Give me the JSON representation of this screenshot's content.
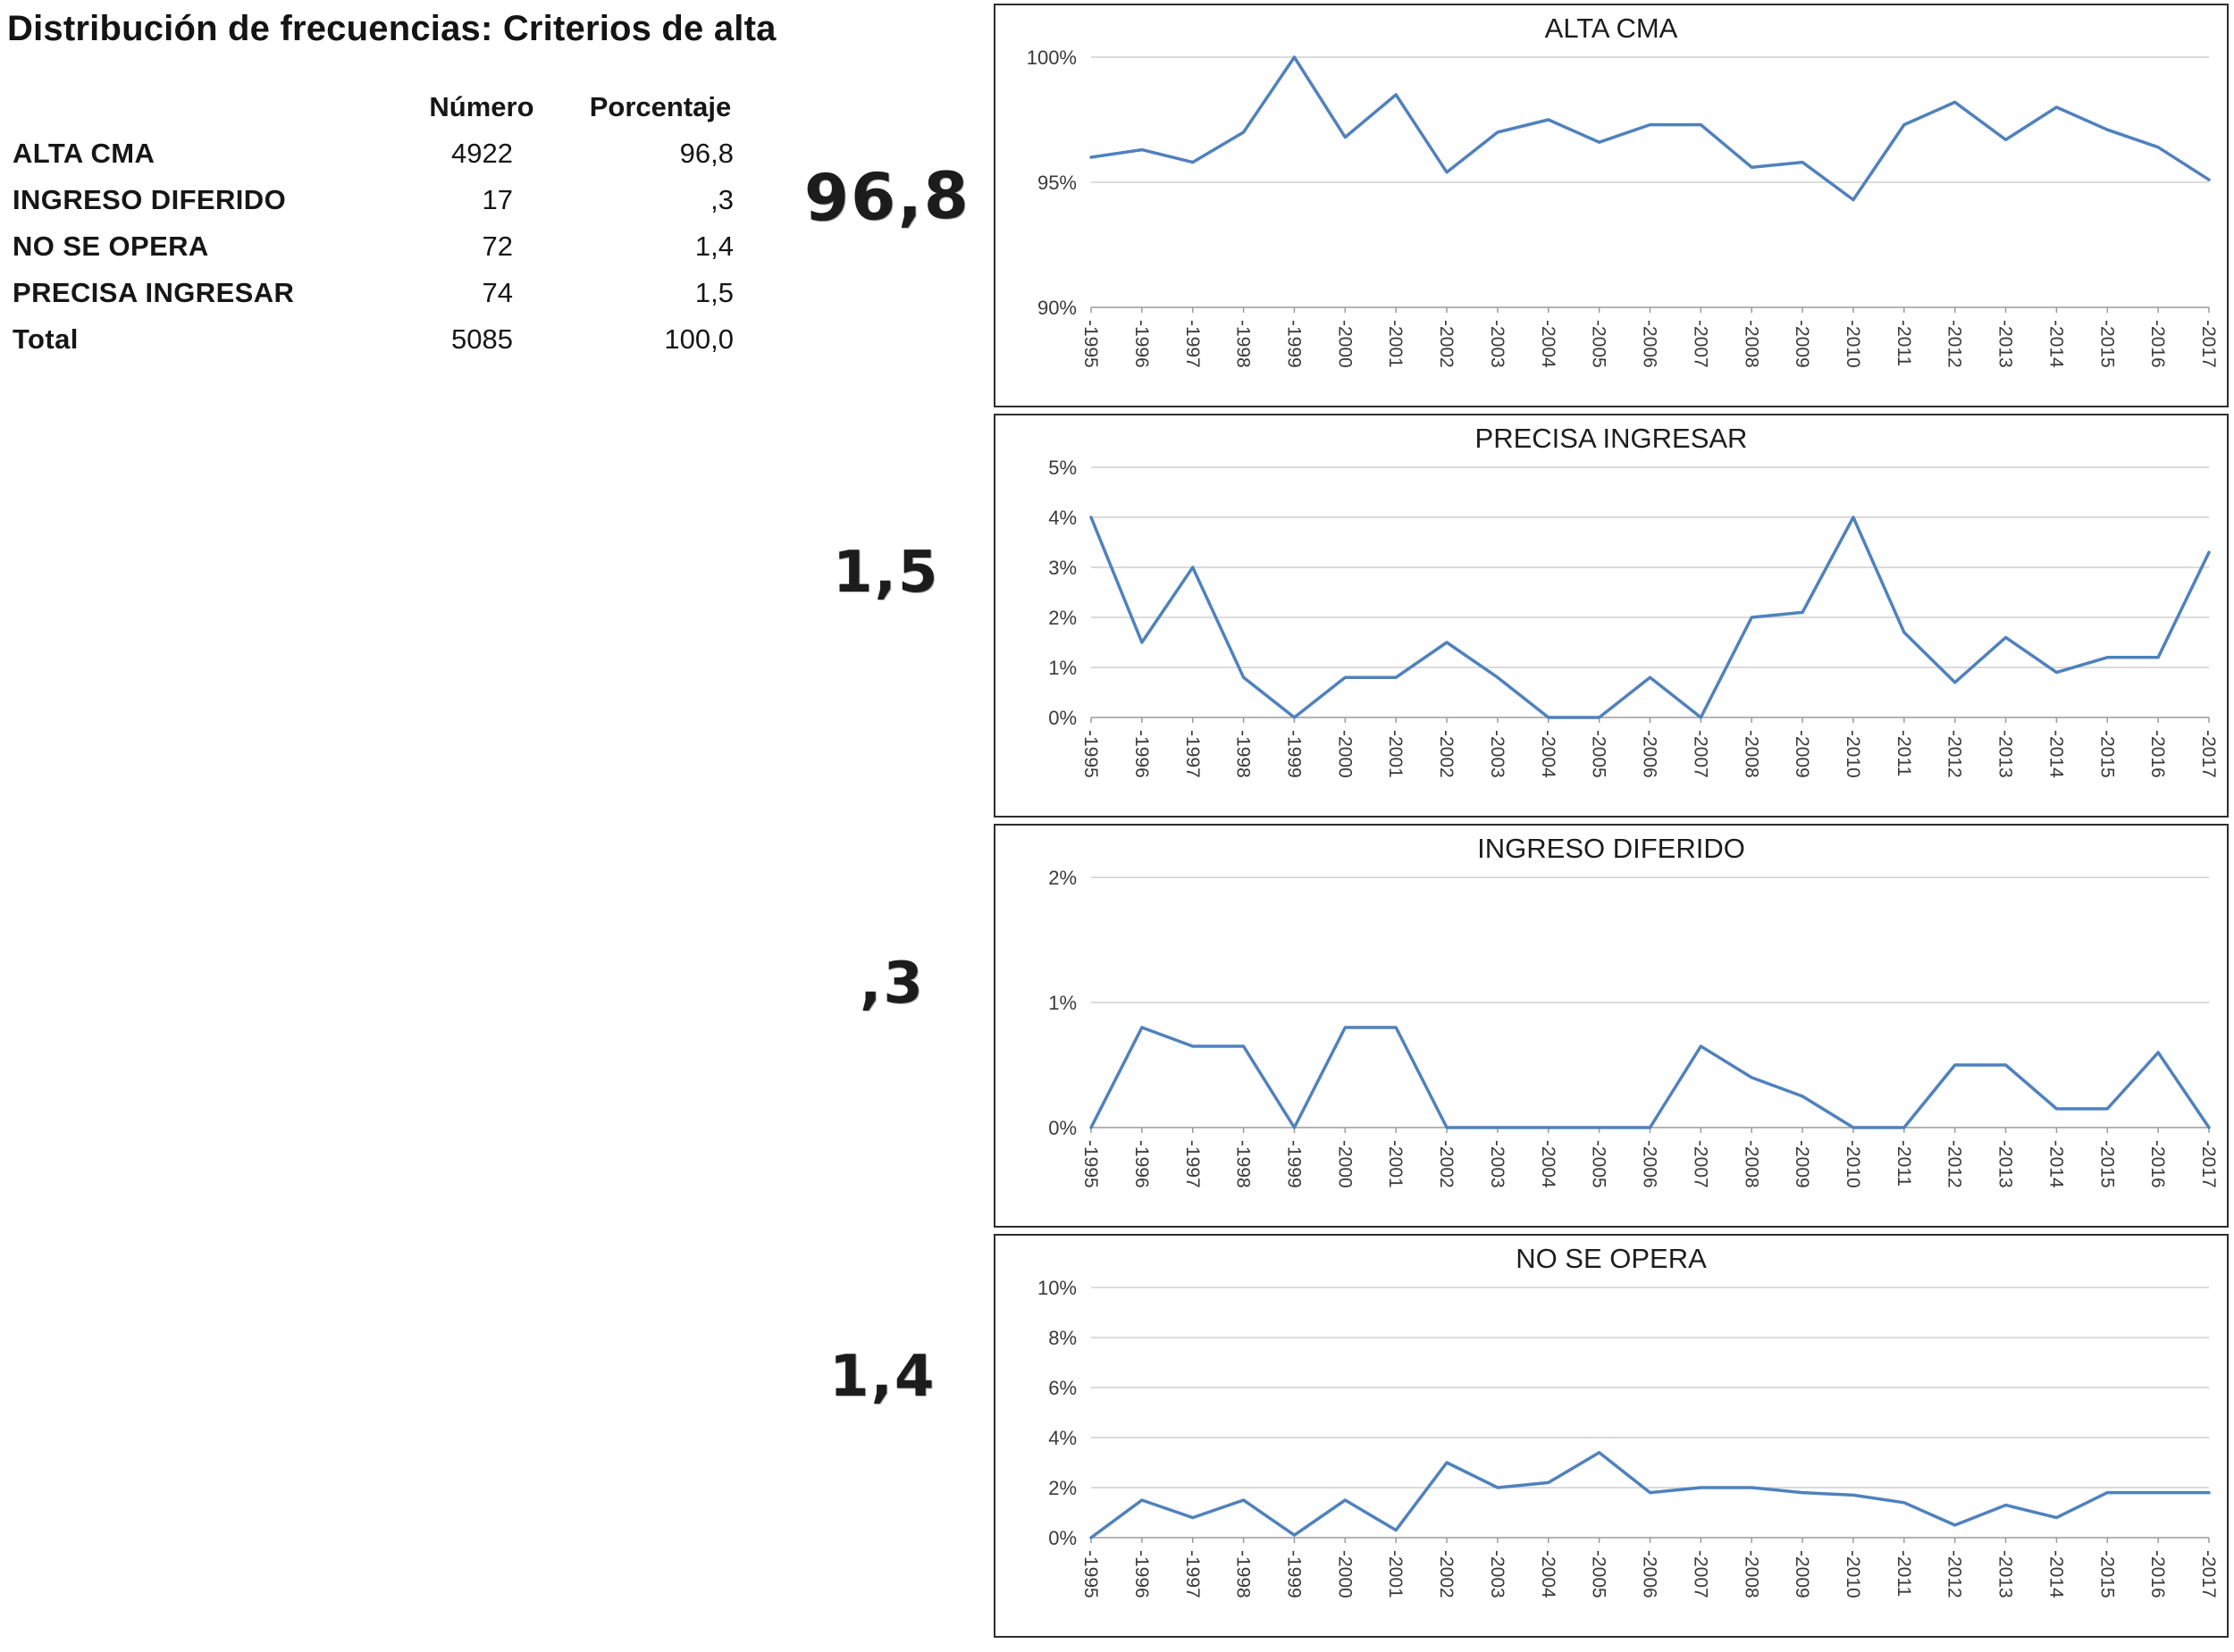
{
  "page": {
    "title": "Distribución de frecuencias: Criterios de alta"
  },
  "table": {
    "headers": {
      "numero": "Número",
      "porcentaje": "Porcentaje"
    },
    "rows": [
      {
        "label": "ALTA CMA",
        "numero": "4922",
        "porcentaje": "96,8"
      },
      {
        "label": "INGRESO DIFERIDO",
        "numero": "17",
        "porcentaje": ",3"
      },
      {
        "label": "NO SE OPERA",
        "numero": "72",
        "porcentaje": "1,4"
      },
      {
        "label": "PRECISA INGRESAR",
        "numero": "74",
        "porcentaje": "1,5"
      },
      {
        "label": "Total",
        "numero": "5085",
        "porcentaje": "100,0"
      }
    ]
  },
  "annotations": [
    "96,8",
    "1,5",
    ",3",
    "1,4"
  ],
  "chart_data": [
    {
      "type": "line",
      "title": "ALTA CMA",
      "x": [
        "-1995",
        "-1996",
        "-1997",
        "-1998",
        "-1999",
        "-2000",
        "-2001",
        "-2002",
        "-2003",
        "-2004",
        "-2005",
        "-2006",
        "-2007",
        "-2008",
        "-2009",
        "-2010",
        "-2011",
        "-2012",
        "-2013",
        "-2014",
        "-2015",
        "-2016",
        "-2017"
      ],
      "values": [
        96.0,
        96.3,
        95.8,
        97.0,
        100.0,
        96.8,
        98.5,
        95.4,
        97.0,
        97.5,
        96.6,
        97.3,
        97.3,
        95.6,
        95.8,
        94.3,
        97.3,
        98.2,
        96.7,
        98.0,
        97.1,
        96.4,
        95.1
      ],
      "ylim": [
        90,
        100
      ],
      "yticks": [
        90,
        95,
        100
      ],
      "ytick_labels": [
        "90%",
        "95%",
        "100%"
      ],
      "line_color": "#4f81bd",
      "grid": true,
      "legend": false
    },
    {
      "type": "line",
      "title": "PRECISA INGRESAR",
      "x": [
        "-1995",
        "-1996",
        "-1997",
        "-1998",
        "-1999",
        "-2000",
        "-2001",
        "-2002",
        "-2003",
        "-2004",
        "-2005",
        "-2006",
        "-2007",
        "-2008",
        "-2009",
        "-2010",
        "-2011",
        "-2012",
        "-2013",
        "-2014",
        "-2015",
        "-2016",
        "-2017"
      ],
      "values": [
        4.0,
        1.5,
        3.0,
        0.8,
        0.0,
        0.8,
        0.8,
        1.5,
        0.8,
        0.0,
        0.0,
        0.8,
        0.0,
        2.0,
        2.1,
        4.0,
        1.7,
        0.7,
        1.6,
        0.9,
        1.2,
        1.2,
        3.3
      ],
      "ylim": [
        0,
        5
      ],
      "yticks": [
        0,
        1,
        2,
        3,
        4,
        5
      ],
      "ytick_labels": [
        "0%",
        "1%",
        "2%",
        "3%",
        "4%",
        "5%"
      ],
      "line_color": "#4f81bd",
      "grid": true,
      "legend": false
    },
    {
      "type": "line",
      "title": "INGRESO DIFERIDO",
      "x": [
        "-1995",
        "-1996",
        "-1997",
        "-1998",
        "-1999",
        "-2000",
        "-2001",
        "-2002",
        "-2003",
        "-2004",
        "-2005",
        "-2006",
        "-2007",
        "-2008",
        "-2009",
        "-2010",
        "-2011",
        "-2012",
        "-2013",
        "-2014",
        "-2015",
        "-2016",
        "-2017"
      ],
      "values": [
        0.0,
        0.8,
        0.65,
        0.65,
        0.0,
        0.8,
        0.8,
        0.0,
        0.0,
        0.0,
        0.0,
        0.0,
        0.65,
        0.4,
        0.25,
        0.0,
        0.0,
        0.5,
        0.5,
        0.15,
        0.15,
        0.6,
        0.0
      ],
      "ylim": [
        0,
        2
      ],
      "yticks": [
        0,
        1,
        2
      ],
      "ytick_labels": [
        "0%",
        "1%",
        "2%"
      ],
      "line_color": "#4f81bd",
      "grid": true,
      "legend": false
    },
    {
      "type": "line",
      "title": "NO SE OPERA",
      "x": [
        "-1995",
        "-1996",
        "-1997",
        "-1998",
        "-1999",
        "-2000",
        "-2001",
        "-2002",
        "-2003",
        "-2004",
        "-2005",
        "-2006",
        "-2007",
        "-2008",
        "-2009",
        "-2010",
        "-2011",
        "-2012",
        "-2013",
        "-2014",
        "-2015",
        "-2016",
        "-2017"
      ],
      "values": [
        0.0,
        1.5,
        0.8,
        1.5,
        0.1,
        1.5,
        0.3,
        3.0,
        2.0,
        2.2,
        3.4,
        1.8,
        2.0,
        2.0,
        1.8,
        1.7,
        1.4,
        0.5,
        1.3,
        0.8,
        1.8,
        1.8,
        1.8
      ],
      "ylim": [
        0,
        10
      ],
      "yticks": [
        0,
        2,
        4,
        6,
        8,
        10
      ],
      "ytick_labels": [
        "0%",
        "2%",
        "4%",
        "6%",
        "8%",
        "10%"
      ],
      "line_color": "#4f81bd",
      "grid": true,
      "legend": false
    }
  ]
}
